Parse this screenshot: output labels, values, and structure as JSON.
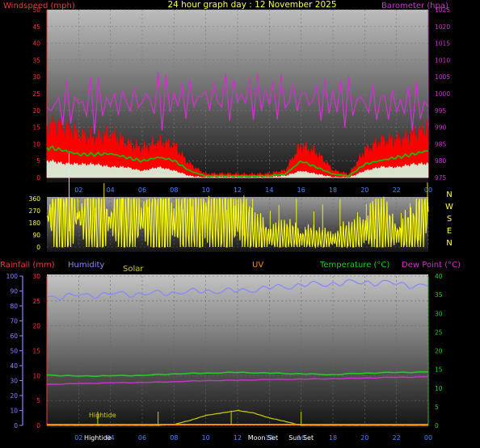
{
  "header": {
    "title": "24 hour graph day : 12 November 2025",
    "left_label": "Windspeed (mph)",
    "right_label": "Barometer (hpa)"
  },
  "bottom_header": {
    "rainfall": "Rainfall (mm)",
    "humidity": "Humidity",
    "solar": "Solar",
    "uv": "UV",
    "temperature": "Temperature (°C)",
    "dewpoint": "Dew Point (°C)"
  },
  "x_ticks": [
    "02",
    "04",
    "06",
    "08",
    "10",
    "12",
    "14",
    "16",
    "18",
    "20",
    "22",
    "00"
  ],
  "events": [
    {
      "label": "Hightide",
      "x_hour": 3.2,
      "y": "Hightide"
    },
    {
      "label": "Sun",
      "x_hour": 3.5,
      "y": "bottom"
    },
    {
      "label": "Moon",
      "x_hour": 13.2,
      "y": "bottom"
    },
    {
      "label": "Set",
      "x_hour": 14.0,
      "y": "bottom"
    },
    {
      "label": "Sun",
      "x_hour": 16.0,
      "y": "bottom"
    },
    {
      "label": "Set",
      "x_hour": 16.5,
      "y": "bottom"
    },
    {
      "label": "Hightide",
      "x_hour": 3.8,
      "y": "mid"
    }
  ],
  "compass": [
    "N",
    "W",
    "S",
    "E",
    "N"
  ],
  "colors": {
    "wind_gust": "#ff0000",
    "wind_avg": "#00cc00",
    "wind_low": "#d8f0d8",
    "barometer": "#cc33cc",
    "direction": "#ffff00",
    "humidity": "#8888ff",
    "temperature": "#22cc22",
    "dewpoint": "#cc33cc",
    "solar": "#cccc00",
    "rain": "#ff8800",
    "left_axis": "#ff3333",
    "right_axis": "#cc33cc"
  },
  "chart_data": [
    {
      "type": "line",
      "title": "24 hour graph day : 12 November 2025",
      "x_range": [
        0,
        24
      ],
      "y_left": {
        "label": "Windspeed (mph)",
        "range": [
          0,
          50
        ],
        "ticks": [
          0,
          5,
          10,
          15,
          20,
          25,
          30,
          35,
          40,
          45,
          50
        ]
      },
      "y_right": {
        "label": "Barometer (hpa)",
        "range": [
          975,
          1025
        ],
        "ticks": [
          975,
          980,
          985,
          990,
          995,
          1000,
          1005,
          1010,
          1015,
          1020,
          1025
        ]
      },
      "series": [
        {
          "name": "Windspeed (mph)",
          "axis": "left",
          "x": [
            0,
            1,
            2,
            3,
            4,
            5,
            6,
            7,
            8,
            9,
            10,
            11,
            12,
            13,
            14,
            15,
            16,
            17,
            18,
            19,
            20,
            21,
            22,
            23,
            24
          ],
          "values": [
            15,
            14,
            13,
            12,
            12,
            10,
            9,
            10,
            9,
            4,
            1,
            1,
            1,
            1,
            1,
            2,
            10,
            7,
            2,
            1,
            8,
            10,
            11,
            13,
            14
          ]
        },
        {
          "name": "Average",
          "axis": "left",
          "x": [
            0,
            1,
            2,
            3,
            4,
            5,
            6,
            7,
            8,
            9,
            10,
            11,
            12,
            13,
            14,
            15,
            16,
            17,
            18,
            19,
            20,
            21,
            22,
            23,
            24
          ],
          "values": [
            9,
            8,
            7,
            7,
            7,
            6,
            5,
            6,
            5,
            2,
            0.5,
            0.5,
            0.5,
            0.5,
            0.5,
            1,
            5,
            3,
            1,
            0.5,
            4,
            5,
            6,
            7,
            8
          ]
        },
        {
          "name": "Low",
          "axis": "left",
          "x": [
            0,
            1,
            2,
            3,
            4,
            5,
            6,
            7,
            8,
            9,
            10,
            11,
            12,
            13,
            14,
            15,
            16,
            17,
            18,
            19,
            20,
            21,
            22,
            23,
            24
          ],
          "values": [
            5,
            4,
            4,
            4,
            3,
            3,
            2,
            3,
            2,
            0.5,
            0,
            0,
            0,
            0,
            0,
            0.5,
            2,
            1,
            0,
            0,
            2,
            3,
            3,
            4,
            4
          ]
        },
        {
          "name": "Barometer (hpa)",
          "axis": "right",
          "x": [
            0,
            2,
            4,
            6,
            8,
            10,
            12,
            14,
            16,
            18,
            20,
            22,
            24
          ],
          "values": [
            996,
            997,
            997.5,
            998,
            998.5,
            999,
            999.3,
            999.2,
            998.8,
            998.2,
            997.5,
            996.8,
            996.5
          ]
        }
      ]
    },
    {
      "type": "scatter",
      "title": "",
      "x_range": [
        0,
        24
      ],
      "y_range": [
        0,
        360
      ],
      "y_ticks": [
        0,
        90,
        180,
        270,
        360
      ],
      "series": [
        {
          "name": "Direction",
          "x": [
            0,
            1,
            2,
            3,
            4,
            5,
            6,
            7,
            8,
            9,
            10,
            11,
            12,
            13,
            14,
            15,
            16,
            17,
            18,
            19,
            20,
            21,
            22,
            23,
            24
          ],
          "values": [
            230,
            240,
            220,
            210,
            200,
            215,
            205,
            220,
            190,
            240,
            225,
            215,
            230,
            90,
            75,
            70,
            65,
            50,
            55,
            60,
            120,
            150,
            100,
            80,
            300
          ]
        }
      ]
    },
    {
      "type": "line",
      "title": "",
      "x_range": [
        0,
        24
      ],
      "y_left": {
        "label": "Rainfall (mm)",
        "range": [
          0,
          30
        ],
        "ticks": [
          0,
          5,
          10,
          15,
          20,
          25,
          30
        ]
      },
      "y_humidity": {
        "label": "Humidity",
        "range": [
          0,
          100
        ],
        "ticks": [
          0,
          10,
          20,
          30,
          40,
          50,
          60,
          70,
          80,
          90,
          100
        ]
      },
      "y_right": {
        "label": "Temperature (°C)",
        "range": [
          0,
          40
        ],
        "ticks": [
          0,
          5,
          10,
          15,
          20,
          25,
          30,
          35,
          40
        ]
      },
      "series": [
        {
          "name": "Humidity",
          "axis": "humidity",
          "x": [
            0,
            2,
            4,
            6,
            8,
            10,
            12,
            14,
            16,
            18,
            20,
            22,
            24
          ],
          "values": [
            86,
            87,
            88,
            88,
            89,
            90,
            90,
            92,
            94,
            95,
            96,
            95,
            93
          ]
        },
        {
          "name": "Temperature (°C)",
          "axis": "right",
          "x": [
            0,
            2,
            4,
            6,
            8,
            10,
            12,
            14,
            16,
            18,
            20,
            22,
            24
          ],
          "values": [
            13.5,
            13.2,
            13.3,
            13.4,
            13.8,
            14,
            14.2,
            14,
            13.8,
            13.6,
            14,
            14.2,
            14.3
          ]
        },
        {
          "name": "Dew Point (°C)",
          "axis": "right",
          "x": [
            0,
            2,
            4,
            6,
            8,
            10,
            12,
            14,
            16,
            18,
            20,
            22,
            24
          ],
          "values": [
            11,
            11.2,
            11.4,
            11.5,
            11.7,
            12,
            12.1,
            12.3,
            12.4,
            12.5,
            12.7,
            12.9,
            13
          ]
        },
        {
          "name": "Solar",
          "axis": "left",
          "x": [
            0,
            6,
            7,
            8,
            9,
            10,
            11,
            12,
            13,
            14,
            15,
            16,
            17,
            24
          ],
          "values": [
            0,
            0,
            0,
            0.2,
            1,
            2,
            2.5,
            3,
            2.5,
            1.5,
            0.8,
            0,
            0,
            0
          ]
        },
        {
          "name": "Rainfall (mm)",
          "axis": "left",
          "x": [
            0,
            24
          ],
          "values": [
            0,
            0
          ]
        }
      ]
    }
  ]
}
